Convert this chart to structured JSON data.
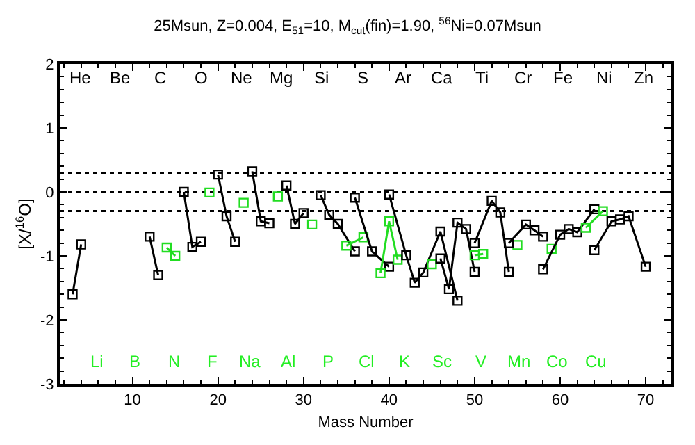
{
  "chart_data": {
    "type": "line",
    "title": "25Msun, Z=0.004, E$_{51}$=10, M$_{cut}$(fin)=1.90, $^{56}$Ni=0.07Msun",
    "xlabel": "Mass Number",
    "ylabel": "[X/$^{16}$O]",
    "xlim": [
      1.5,
      73
    ],
    "xticks": [
      10,
      20,
      30,
      40,
      50,
      60,
      70
    ],
    "ylim": [
      -3,
      2
    ],
    "yticks": [
      -3,
      -2,
      -1,
      0,
      1,
      2
    ],
    "marker": "square",
    "line_style": "solid",
    "ref_lines": [
      {
        "axis": "y",
        "value": 0.3,
        "line_style": "dotted"
      },
      {
        "axis": "y",
        "value": 0,
        "line_style": "dotted"
      },
      {
        "axis": "y",
        "value": -0.3,
        "line_style": "dotted"
      }
    ],
    "annotations": [
      "He",
      "Be",
      "C",
      "O",
      "Ne",
      "Mg",
      "Si",
      "S",
      "Ar",
      "Ca",
      "Ti",
      "Cr",
      "Fe",
      "Ni",
      "Zn",
      "Li",
      "B",
      "N",
      "F",
      "Na",
      "Al",
      "P",
      "Cl",
      "K",
      "Sc",
      "V",
      "Mn",
      "Co",
      "Cu"
    ],
    "series": [
      {
        "color": "#000000",
        "x": [
          3,
          4
        ],
        "values": [
          -1.6,
          -0.82
        ]
      },
      {
        "color": "#000000",
        "x": [
          12,
          13
        ],
        "values": [
          -0.7,
          -1.3
        ]
      },
      {
        "color": "#22dd22",
        "x": [
          14,
          15
        ],
        "values": [
          -0.87,
          -1.0
        ]
      },
      {
        "color": "#000000",
        "x": [
          16,
          17,
          18
        ],
        "values": [
          0.0,
          -0.86,
          -0.78
        ]
      },
      {
        "color": "#22dd22",
        "x": [
          19
        ],
        "values": [
          -0.01
        ]
      },
      {
        "color": "#000000",
        "x": [
          20,
          21,
          22
        ],
        "values": [
          0.27,
          -0.38,
          -0.78
        ]
      },
      {
        "color": "#22dd22",
        "x": [
          23
        ],
        "values": [
          -0.17
        ]
      },
      {
        "color": "#000000",
        "x": [
          24,
          25,
          26
        ],
        "values": [
          0.32,
          -0.46,
          -0.49
        ]
      },
      {
        "color": "#22dd22",
        "x": [
          27
        ],
        "values": [
          -0.07
        ]
      },
      {
        "color": "#000000",
        "x": [
          28,
          29,
          30
        ],
        "values": [
          0.1,
          -0.5,
          -0.33
        ]
      },
      {
        "color": "#22dd22",
        "x": [
          31
        ],
        "values": [
          -0.51
        ]
      },
      {
        "color": "#000000",
        "x": [
          32,
          33,
          34,
          36
        ],
        "values": [
          -0.05,
          -0.36,
          -0.5,
          -0.93
        ]
      },
      {
        "color": "#22dd22",
        "x": [
          35,
          37
        ],
        "values": [
          -0.84,
          -0.71
        ]
      },
      {
        "color": "#000000",
        "x": [
          36,
          38,
          40
        ],
        "values": [
          -0.09,
          -0.93,
          -1.17
        ]
      },
      {
        "color": "#22dd22",
        "x": [
          39,
          40,
          41
        ],
        "values": [
          -1.27,
          -0.46,
          -1.06
        ]
      },
      {
        "color": "#000000",
        "x": [
          40,
          42,
          43,
          44,
          46,
          48
        ],
        "values": [
          -0.04,
          -0.99,
          -1.42,
          -1.26,
          -0.62,
          -1.7
        ]
      },
      {
        "color": "#22dd22",
        "x": [
          45
        ],
        "values": [
          -1.13
        ]
      },
      {
        "color": "#000000",
        "x": [
          46,
          47,
          48,
          49,
          50
        ],
        "values": [
          -1.04,
          -1.52,
          -0.48,
          -0.58,
          -1.25
        ]
      },
      {
        "color": "#22dd22",
        "x": [
          50,
          51
        ],
        "values": [
          -0.99,
          -0.97
        ]
      },
      {
        "color": "#000000",
        "x": [
          50,
          52,
          53,
          54
        ],
        "values": [
          -0.8,
          -0.14,
          -0.32,
          -1.25
        ]
      },
      {
        "color": "#22dd22",
        "x": [
          55
        ],
        "values": [
          -0.83
        ]
      },
      {
        "color": "#000000",
        "x": [
          54,
          56,
          57,
          58
        ],
        "values": [
          -0.8,
          -0.51,
          -0.6,
          -0.7
        ]
      },
      {
        "color": "#22dd22",
        "x": [
          59
        ],
        "values": [
          -0.89
        ]
      },
      {
        "color": "#000000",
        "x": [
          58,
          60,
          61,
          62,
          64
        ],
        "values": [
          -1.21,
          -0.67,
          -0.58,
          -0.63,
          -0.27
        ]
      },
      {
        "color": "#22dd22",
        "x": [
          63,
          65
        ],
        "values": [
          -0.56,
          -0.3
        ]
      },
      {
        "color": "#000000",
        "x": [
          64,
          66,
          67,
          68,
          70
        ],
        "values": [
          -0.91,
          -0.46,
          -0.43,
          -0.38,
          -1.17
        ]
      }
    ]
  }
}
